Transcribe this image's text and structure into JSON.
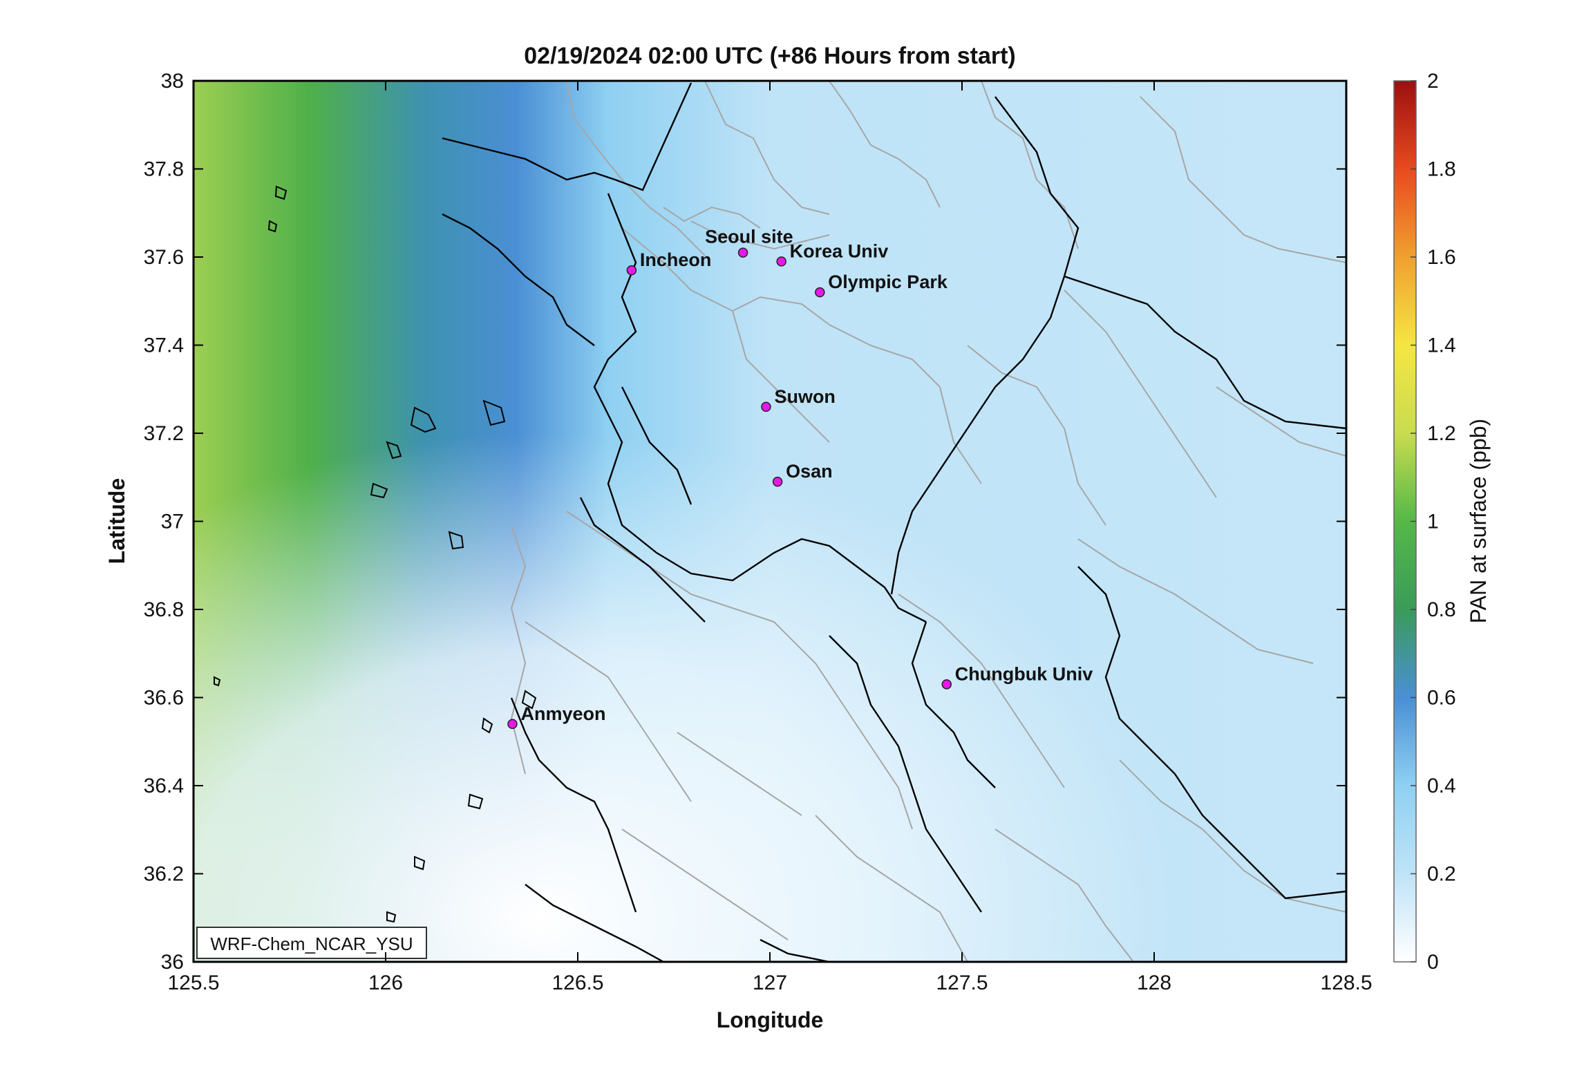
{
  "title": "02/19/2024 02:00 UTC (+86 Hours from start)",
  "xlabel": "Longitude",
  "ylabel": "Latitude",
  "colorbar_label": "PAN at surface (ppb)",
  "model_label": "WRF-Chem_NCAR_YSU",
  "extent": {
    "lon": [
      125.5,
      128.5
    ],
    "lat": [
      36.0,
      38.0
    ]
  },
  "x_ticks": [
    "125.5",
    "126",
    "126.5",
    "127",
    "127.5",
    "128",
    "128.5"
  ],
  "y_ticks": [
    "36",
    "36.2",
    "36.4",
    "36.6",
    "36.8",
    "37",
    "37.2",
    "37.4",
    "37.6",
    "37.8",
    "38"
  ],
  "colorbar_ticks": [
    "0",
    "0.2",
    "0.4",
    "0.6",
    "0.8",
    "1",
    "1.2",
    "1.4",
    "1.6",
    "1.8",
    "2"
  ],
  "colorbar_range": [
    0,
    2
  ],
  "colorscale": [
    "#ffffff",
    "#bfe3f7",
    "#8fd0f2",
    "#4a8fd4",
    "#3a9b5a",
    "#55b848",
    "#c8dc50",
    "#f5e642",
    "#f0a030",
    "#e84a1e",
    "#9b1010"
  ],
  "stations": [
    {
      "name": "Seoul site",
      "lon": 126.93,
      "lat": 37.61
    },
    {
      "name": "Korea Univ",
      "lon": 127.03,
      "lat": 37.59
    },
    {
      "name": "Incheon",
      "lon": 126.64,
      "lat": 37.57
    },
    {
      "name": "Olympic Park",
      "lon": 127.13,
      "lat": 37.52
    },
    {
      "name": "Suwon",
      "lon": 126.99,
      "lat": 37.26
    },
    {
      "name": "Osan",
      "lon": 127.02,
      "lat": 37.09
    },
    {
      "name": "Chungbuk Univ",
      "lon": 127.46,
      "lat": 36.63
    },
    {
      "name": "Anmyeon",
      "lon": 126.33,
      "lat": 36.54
    }
  ],
  "station_color": "#e619e6"
}
